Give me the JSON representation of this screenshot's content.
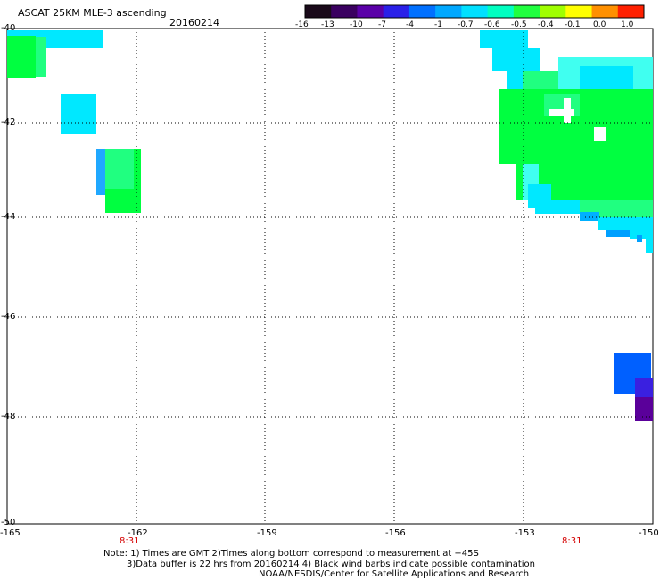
{
  "header": {
    "title": "ASCAT 25KM MLE-3 ascending",
    "date": "20160214"
  },
  "colorbar": {
    "ticks": [
      "-16",
      "-13",
      "-10",
      "-7",
      "-4",
      "-1",
      "-0.7",
      "-0.6",
      "-0.5",
      "-0.4",
      "-0.1",
      "0.0",
      "1.0"
    ],
    "colors": [
      "#1a0a1a",
      "#3a0060",
      "#5a00a8",
      "#2a20e8",
      "#0070ff",
      "#00a8ff",
      "#00e0ff",
      "#00ffc0",
      "#20ff40",
      "#a0ff00",
      "#ffff00",
      "#ff9000",
      "#ff2000"
    ]
  },
  "map": {
    "lat_labels": [
      "-40",
      "-42",
      "-44",
      "-46",
      "-48",
      "-50"
    ],
    "lon_labels": [
      "-165",
      "-162",
      "-159",
      "-156",
      "-153",
      "-150"
    ],
    "time_labels": [
      "8:31",
      "8:31"
    ],
    "colors": {
      "cyan": "#00e8ff",
      "aqua": "#40fff0",
      "green": "#00ff40",
      "lime": "#20ff60",
      "blue": "#0060ff",
      "skyblue": "#20a8ff",
      "purple": "#5a009a"
    }
  },
  "notes": {
    "line1": "Note: 1) Times are GMT 2)Times along bottom correspond to measurement at −45S",
    "line2": "3)Data buffer is 22 hrs from 20160214 4) Black wind barbs indicate possible contamination",
    "line3": "NOAA/NESDIS/Center for Satellite Applications and Research"
  }
}
